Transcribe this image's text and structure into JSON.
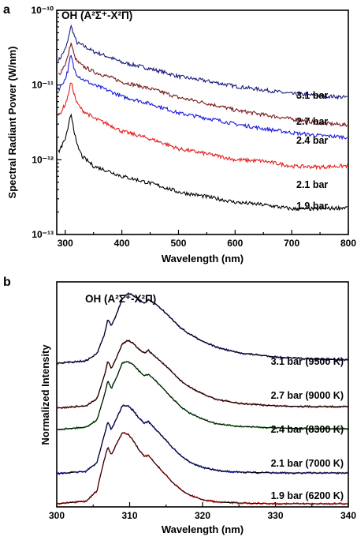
{
  "chart_data": [
    {
      "panel": "a",
      "type": "line",
      "annotation": "OH (A²Σ⁺-X²Π)",
      "xlabel": "Wavelength (nm)",
      "ylabel": "Spectral Radiant Power (W/nm)",
      "xlim": [
        285,
        800
      ],
      "ylim": [
        1e-13,
        1e-10
      ],
      "yscale": "log",
      "xticks": [
        300,
        400,
        500,
        600,
        700,
        800
      ],
      "yticks": [
        "10⁻¹⁰",
        "10⁻¹¹",
        "10⁻¹²",
        "10⁻¹³"
      ],
      "x": [
        290,
        300,
        305,
        310,
        315,
        320,
        330,
        350,
        400,
        500,
        600,
        650,
        700,
        750,
        800
      ],
      "series": [
        {
          "name": "3.1 bar",
          "color": "#1a1a7a",
          "values": [
            2.2e-11,
            3e-11,
            3.9e-11,
            6.2e-11,
            4.8e-11,
            3.7e-11,
            3.4e-11,
            2.8e-11,
            2e-11,
            1.3e-11,
            9.6e-12,
            8.6e-12,
            7.6e-12,
            7.2e-12,
            6.8e-12
          ]
        },
        {
          "name": "2.7 bar",
          "color": "#7a1a1a",
          "values": [
            1.4e-11,
            1.9e-11,
            2.4e-11,
            3.7e-11,
            2.6e-11,
            2.1e-11,
            1.8e-11,
            1.5e-11,
            1.1e-11,
            6.8e-12,
            4.6e-12,
            4e-12,
            3.5e-12,
            3.1e-12,
            2.9e-12
          ]
        },
        {
          "name": "2.4 bar",
          "color": "#1a1ae0",
          "values": [
            9e-12,
            1.2e-11,
            1.6e-11,
            2.5e-11,
            1.7e-11,
            1.4e-11,
            1.2e-11,
            1e-11,
            7e-12,
            4.2e-12,
            3e-12,
            2.6e-12,
            2.3e-12,
            2.1e-12,
            2e-12
          ]
        },
        {
          "name": "2.1 bar",
          "color": "#e81e1e",
          "values": [
            4e-12,
            5.5e-12,
            7e-12,
            1.1e-11,
            8e-12,
            5.8e-12,
            4.6e-12,
            3.6e-12,
            2.4e-12,
            1.4e-12,
            1e-12,
            9.6e-13,
            8.2e-13,
            8e-13,
            8.3e-13
          ]
        },
        {
          "name": "1.9 bar",
          "color": "#000000",
          "values": [
            1.3e-12,
            1.9e-12,
            2.5e-12,
            4.2e-12,
            2.6e-12,
            1.6e-12,
            1.1e-12,
            8.2e-13,
            6e-13,
            3.7e-13,
            2.7e-13,
            2.5e-13,
            2.2e-13,
            2.2e-13,
            2.3e-13
          ]
        }
      ]
    },
    {
      "panel": "b",
      "type": "line",
      "annotation": "OH (A²Σ⁺-X²Π)",
      "xlabel": "Wavelength (nm)",
      "ylabel": "Normalized Intensity",
      "xlim": [
        300,
        340
      ],
      "xticks": [
        300,
        310,
        320,
        330,
        340
      ],
      "x": [
        300,
        304,
        305.5,
        306.5,
        307,
        307.5,
        308.2,
        309,
        309.8,
        310.5,
        311.3,
        312,
        312.6,
        313.4,
        314.2,
        315,
        316,
        317,
        318,
        320,
        322,
        325,
        330,
        335,
        340
      ],
      "series": [
        {
          "name": "3.1 bar (9500 K)",
          "color": "#1a1a7a",
          "values": [
            0.0,
            0.03,
            0.12,
            0.35,
            0.55,
            0.48,
            0.62,
            0.82,
            0.88,
            0.86,
            0.8,
            0.76,
            0.8,
            0.76,
            0.7,
            0.63,
            0.54,
            0.45,
            0.38,
            0.28,
            0.2,
            0.13,
            0.08,
            0.05,
            0.04
          ]
        },
        {
          "name": "2.7 bar (9000 K)",
          "color": "#7a1a1a",
          "values": [
            0.0,
            0.03,
            0.12,
            0.4,
            0.6,
            0.5,
            0.64,
            0.82,
            0.86,
            0.82,
            0.74,
            0.7,
            0.73,
            0.66,
            0.6,
            0.53,
            0.44,
            0.35,
            0.28,
            0.18,
            0.11,
            0.06,
            0.03,
            0.02,
            0.02
          ]
        },
        {
          "name": "2.4 bar (8300 K)",
          "color": "#1e7a1e",
          "values": [
            0.0,
            0.03,
            0.12,
            0.42,
            0.62,
            0.52,
            0.66,
            0.84,
            0.86,
            0.82,
            0.74,
            0.68,
            0.7,
            0.63,
            0.56,
            0.48,
            0.38,
            0.29,
            0.22,
            0.13,
            0.07,
            0.04,
            0.02,
            0.01,
            0.01
          ]
        },
        {
          "name": "2.1 bar (7000 K)",
          "color": "#1a1ab4",
          "values": [
            0.0,
            0.03,
            0.14,
            0.48,
            0.66,
            0.56,
            0.7,
            0.86,
            0.86,
            0.8,
            0.7,
            0.64,
            0.66,
            0.58,
            0.5,
            0.42,
            0.32,
            0.23,
            0.16,
            0.08,
            0.04,
            0.02,
            0.01,
            0.01,
            0.01
          ]
        },
        {
          "name": "1.9 bar (6200 K)",
          "color": "#e01e1e",
          "values": [
            0.0,
            0.03,
            0.16,
            0.55,
            0.72,
            0.62,
            0.76,
            0.9,
            0.88,
            0.8,
            0.68,
            0.6,
            0.61,
            0.52,
            0.44,
            0.36,
            0.26,
            0.18,
            0.12,
            0.05,
            0.02,
            0.01,
            0.0,
            0.0,
            0.0
          ]
        }
      ]
    }
  ]
}
